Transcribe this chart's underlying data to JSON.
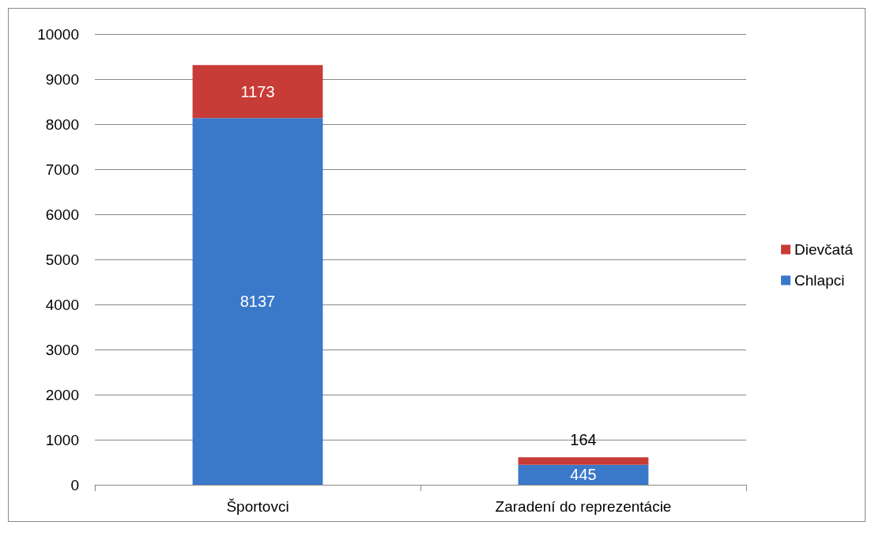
{
  "chart_data": {
    "type": "bar",
    "stacked": true,
    "categories": [
      "Športovci",
      "Zaradení do reprezentácie"
    ],
    "series": [
      {
        "name": "Chlapci",
        "color": "#3a78c9",
        "values": [
          8137,
          445
        ]
      },
      {
        "name": "Dievčatá",
        "color": "#c83c38",
        "values": [
          1173,
          164
        ]
      }
    ],
    "ylim": [
      0,
      10000
    ],
    "yticks": [
      0,
      1000,
      2000,
      3000,
      4000,
      5000,
      6000,
      7000,
      8000,
      9000,
      10000
    ],
    "grid": "y",
    "legend": "right",
    "data_labels": true
  }
}
